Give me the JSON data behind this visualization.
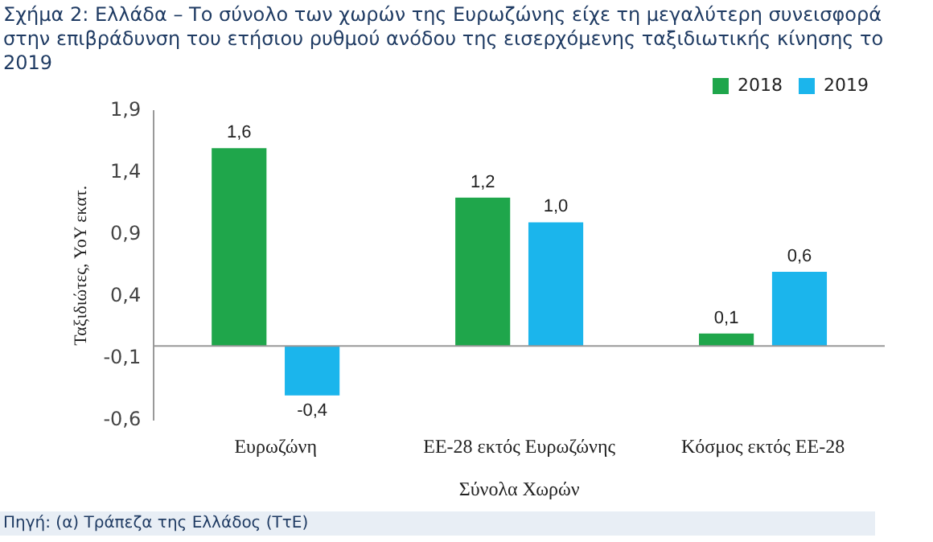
{
  "chart_data": {
    "type": "bar",
    "title": "Σχήμα 2: Ελλάδα – Το σύνολο των χωρών της Ευρωζώνης είχε τη μεγαλύτερη συνεισφορά στην επιβράδυνση του ετήσιου ρυθμού ανόδου της εισερχόμενης ταξιδιωτικής κίνησης το 2019",
    "xlabel": "Σύνολα Χωρών",
    "ylabel": "Ταξιδιώτες, YoY εκατ.",
    "categories": [
      "Ευρωζώνη",
      "ΕΕ-28 εκτός Ευρωζώνης",
      "Κόσμος εκτός ΕΕ-28"
    ],
    "series": [
      {
        "name": "2018",
        "color": "#1fa64b",
        "values": [
          1.6,
          1.2,
          0.1
        ],
        "value_labels": [
          "1,6",
          "1,2",
          "0,1"
        ]
      },
      {
        "name": "2019",
        "color": "#1bb5ec",
        "values": [
          -0.4,
          1.0,
          0.6
        ],
        "value_labels": [
          "-0,4",
          "1,0",
          "0,6"
        ]
      }
    ],
    "ylim": [
      -0.6,
      1.9
    ],
    "yticks": [
      {
        "value": -0.6,
        "label": "-0,6"
      },
      {
        "value": -0.1,
        "label": "-0,1"
      },
      {
        "value": 0.4,
        "label": "0,4"
      },
      {
        "value": 0.9,
        "label": "0,9"
      },
      {
        "value": 1.4,
        "label": "1,4"
      },
      {
        "value": 1.9,
        "label": "1,9"
      }
    ],
    "grid": false,
    "legend": "top right",
    "annotations": [
      "Πηγή: (α) Τράπεζα της Ελλάδος (ΤτΕ)"
    ]
  }
}
